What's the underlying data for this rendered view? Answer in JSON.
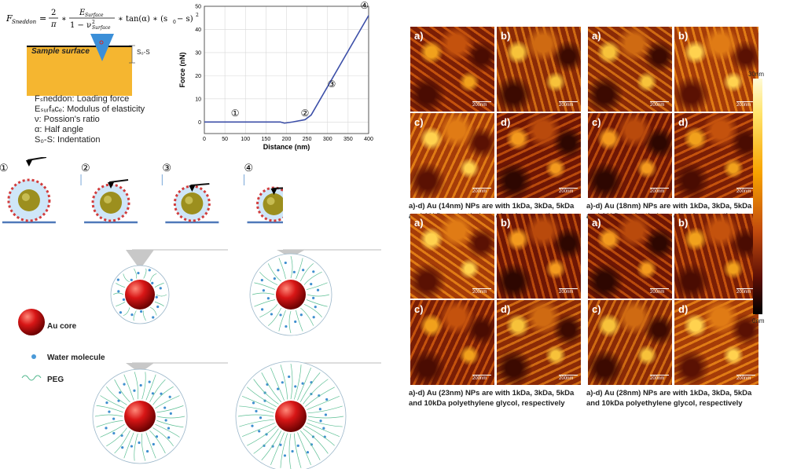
{
  "legend": {
    "sample_surface": "Sample surface",
    "depth_label": "S₀-S",
    "lines": [
      "Fₛneddon: Loading force",
      "Eₛᵤᵣfₐcₑ: Modulus of elasticity",
      "ν: Possion's ratio",
      "α: Half angle",
      "S₀-S: Indentation"
    ]
  },
  "chart_data": {
    "type": "line",
    "title": "",
    "xlabel": "Distance (nm)",
    "ylabel": "Force (nN)",
    "xlim": [
      0,
      400
    ],
    "ylim": [
      -5,
      50
    ],
    "xticks": [
      0,
      50,
      100,
      150,
      200,
      250,
      300,
      350,
      400
    ],
    "yticks": [
      0,
      10,
      20,
      30,
      40,
      50
    ],
    "grid": true,
    "series": [
      {
        "color": "#3c4fa8",
        "x": [
          0,
          185,
          195,
          215,
          245,
          260,
          400
        ],
        "y": [
          0,
          0,
          -0.5,
          0,
          1,
          3,
          46
        ]
      }
    ],
    "annotations": [
      {
        "label": "①",
        "x": 75,
        "y": 2.5
      },
      {
        "label": "②",
        "x": 245,
        "y": 2.5
      },
      {
        "label": "③",
        "x": 310,
        "y": 15
      },
      {
        "label": "④",
        "x": 390,
        "y": 49
      }
    ]
  },
  "stages": [
    "①",
    "②",
    "③",
    "④"
  ],
  "key": {
    "au_core": "Au core",
    "water": "Water molecule",
    "peg": "PEG"
  },
  "afm": {
    "tile_labels": [
      "a)",
      "b)",
      "c)",
      "d)"
    ],
    "scale": "200nm",
    "blocks": [
      {
        "caption1": "a)-d) Au (14nm) NPs are with 1kDa, 3kDa, 5kDa",
        "caption2": "and 10kDa polyethylene glycol, respectively"
      },
      {
        "caption1": "a)-d) Au (18nm) NPs are with 1kDa, 3kDa, 5kDa",
        "caption2": "and 10kDa polyethylene glycol, respectively"
      },
      {
        "caption1": "a)-d) Au (23nm) NPs are with 1kDa, 3kDa, 5kDa",
        "caption2": "and 10kDa polyethylene glycol, respectively"
      },
      {
        "caption1": "a)-d) Au (28nm) NPs are with 1kDa, 3kDa, 5kDa",
        "caption2": "and 10kDa polyethylene glycol, respectively"
      }
    ],
    "colorbar_top": "30nm",
    "colorbar_bottom": "0nm"
  }
}
